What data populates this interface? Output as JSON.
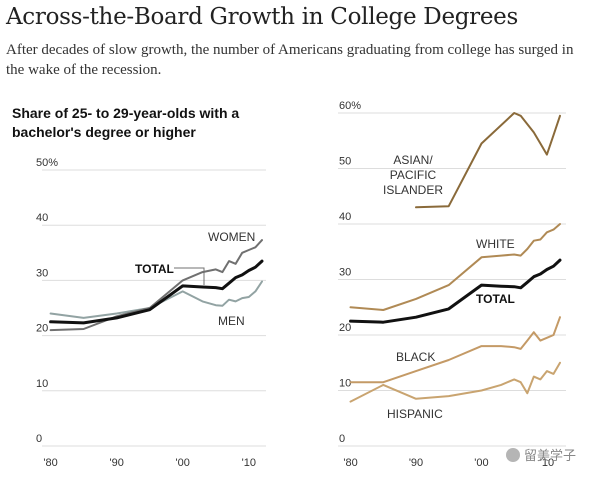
{
  "headline": "Across-the-Board Growth in College Degrees",
  "dek": "After decades of slow growth, the number of Americans graduating from college has surged in the wake of the recession.",
  "subhead": "Share of 25- to 29-year-olds with a bachelor's degree or higher",
  "watermark": "留美学子",
  "colors": {
    "women": "#707070",
    "men": "#92a3a3",
    "total": "#111111",
    "asian": "#8a6a3a",
    "white": "#b08a55",
    "black": "#c49a66",
    "hispanic": "#c9a470",
    "grid": "#dddddd",
    "text": "#333333"
  },
  "chart_data": [
    {
      "type": "line",
      "title": "Share of 25- to 29-year-olds with a bachelor's degree or higher",
      "y_tick_labels": [
        "0",
        "10",
        "20",
        "30",
        "40",
        "50%"
      ],
      "ylim": [
        0,
        50
      ],
      "x_tick_labels": [
        "'80",
        "'90",
        "'00",
        "'10"
      ],
      "xlim": [
        1979,
        2012
      ],
      "grid": true,
      "series": [
        {
          "key": "men",
          "name": "MEN",
          "x": [
            1980,
            1985,
            1990,
            1995,
            2000,
            2003,
            2005,
            2006,
            2007,
            2008,
            2009,
            2010,
            2011,
            2012
          ],
          "values": [
            24,
            23.2,
            24,
            25,
            28,
            26.2,
            25.5,
            25.4,
            26.5,
            26.2,
            26.8,
            27,
            28,
            29.8
          ]
        },
        {
          "key": "women",
          "name": "WOMEN",
          "x": [
            1980,
            1985,
            1990,
            1995,
            2000,
            2003,
            2005,
            2006,
            2007,
            2008,
            2009,
            2010,
            2011,
            2012
          ],
          "values": [
            21,
            21.2,
            23.5,
            25,
            30,
            31.5,
            32,
            31.5,
            33.5,
            33,
            35,
            35.5,
            36,
            37.3
          ]
        },
        {
          "key": "total",
          "name": "TOTAL",
          "x": [
            1980,
            1985,
            1990,
            1995,
            2000,
            2003,
            2005,
            2006,
            2007,
            2008,
            2009,
            2010,
            2011,
            2012
          ],
          "values": [
            22.5,
            22.3,
            23.2,
            24.7,
            29,
            28.8,
            28.7,
            28.5,
            29.5,
            30.5,
            31,
            31.8,
            32.4,
            33.5
          ]
        }
      ]
    },
    {
      "type": "line",
      "y_tick_labels": [
        "0",
        "10",
        "20",
        "30",
        "40",
        "50",
        "60%"
      ],
      "ylim": [
        0,
        60
      ],
      "x_tick_labels": [
        "'80",
        "'90",
        "'00",
        "'10"
      ],
      "xlim": [
        1979,
        2012
      ],
      "grid": true,
      "series": [
        {
          "key": "asian",
          "name": "ASIAN/ PACIFIC ISLANDER",
          "x": [
            1990,
            1995,
            2000,
            2005,
            2006,
            2007,
            2008,
            2009,
            2010,
            2011,
            2012
          ],
          "values": [
            43,
            43.2,
            54.5,
            60,
            59.5,
            58,
            56.5,
            54.5,
            52.5,
            56,
            59.5
          ]
        },
        {
          "key": "white",
          "name": "WHITE",
          "x": [
            1980,
            1985,
            1990,
            1995,
            2000,
            2003,
            2005,
            2006,
            2007,
            2008,
            2009,
            2010,
            2011,
            2012
          ],
          "values": [
            25,
            24.5,
            26.5,
            29,
            34,
            34.3,
            34.5,
            34.3,
            35.5,
            37,
            37.2,
            38.5,
            39,
            40
          ]
        },
        {
          "key": "total",
          "name": "TOTAL",
          "x": [
            1980,
            1985,
            1990,
            1995,
            2000,
            2003,
            2005,
            2006,
            2007,
            2008,
            2009,
            2010,
            2011,
            2012
          ],
          "values": [
            22.5,
            22.3,
            23.2,
            24.7,
            29,
            28.8,
            28.7,
            28.5,
            29.5,
            30.5,
            31,
            31.8,
            32.4,
            33.5
          ]
        },
        {
          "key": "black",
          "name": "BLACK",
          "x": [
            1980,
            1985,
            1990,
            1995,
            2000,
            2003,
            2005,
            2006,
            2007,
            2008,
            2009,
            2010,
            2011,
            2012
          ],
          "values": [
            11.5,
            11.5,
            13.5,
            15.5,
            18,
            18,
            17.8,
            17.5,
            19,
            20.5,
            19,
            19.5,
            20,
            23.2
          ]
        },
        {
          "key": "hispanic",
          "name": "HISPANIC",
          "x": [
            1980,
            1985,
            1990,
            1995,
            2000,
            2003,
            2005,
            2006,
            2007,
            2008,
            2009,
            2010,
            2011,
            2012
          ],
          "values": [
            8,
            11,
            8.5,
            9,
            10,
            11,
            12,
            11.5,
            9.5,
            12.5,
            12,
            13.5,
            13,
            15
          ]
        }
      ]
    }
  ]
}
